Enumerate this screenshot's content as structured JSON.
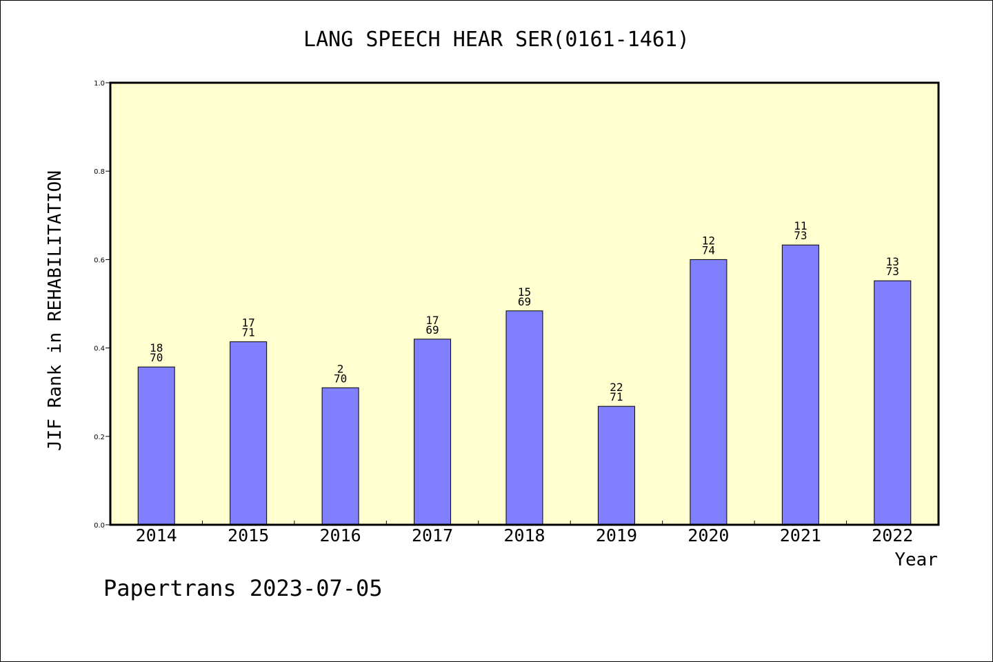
{
  "chart_data": {
    "type": "bar",
    "title": "LANG SPEECH HEAR SER(0161-1461)",
    "xlabel": "Year",
    "ylabel": "JIF Rank in REHABILITATION",
    "ylim": [
      0,
      1.0
    ],
    "yticks": [
      "0.0",
      "0.2",
      "0.4",
      "0.6",
      "0.8",
      "1.0"
    ],
    "categories": [
      "2014",
      "2015",
      "2016",
      "2017",
      "2018",
      "2019",
      "2020",
      "2021",
      "2022"
    ],
    "values": [
      0.357,
      0.414,
      0.31,
      0.42,
      0.484,
      0.268,
      0.6,
      0.633,
      0.552
    ],
    "labels": [
      {
        "rank": "18",
        "total": "70"
      },
      {
        "rank": "17",
        "total": "71"
      },
      {
        "rank": "2",
        "total": "70"
      },
      {
        "rank": "17",
        "total": "69"
      },
      {
        "rank": "15",
        "total": "69"
      },
      {
        "rank": "22",
        "total": "71"
      },
      {
        "rank": "12",
        "total": "74"
      },
      {
        "rank": "11",
        "total": "73"
      },
      {
        "rank": "13",
        "total": "73"
      }
    ],
    "grid": false,
    "colors": {
      "plot_background": "#ffffd0",
      "bar_fill": "#8080ff",
      "bar_stroke": "#000000"
    }
  },
  "footer": {
    "credit": "Papertrans 2023-07-05"
  }
}
